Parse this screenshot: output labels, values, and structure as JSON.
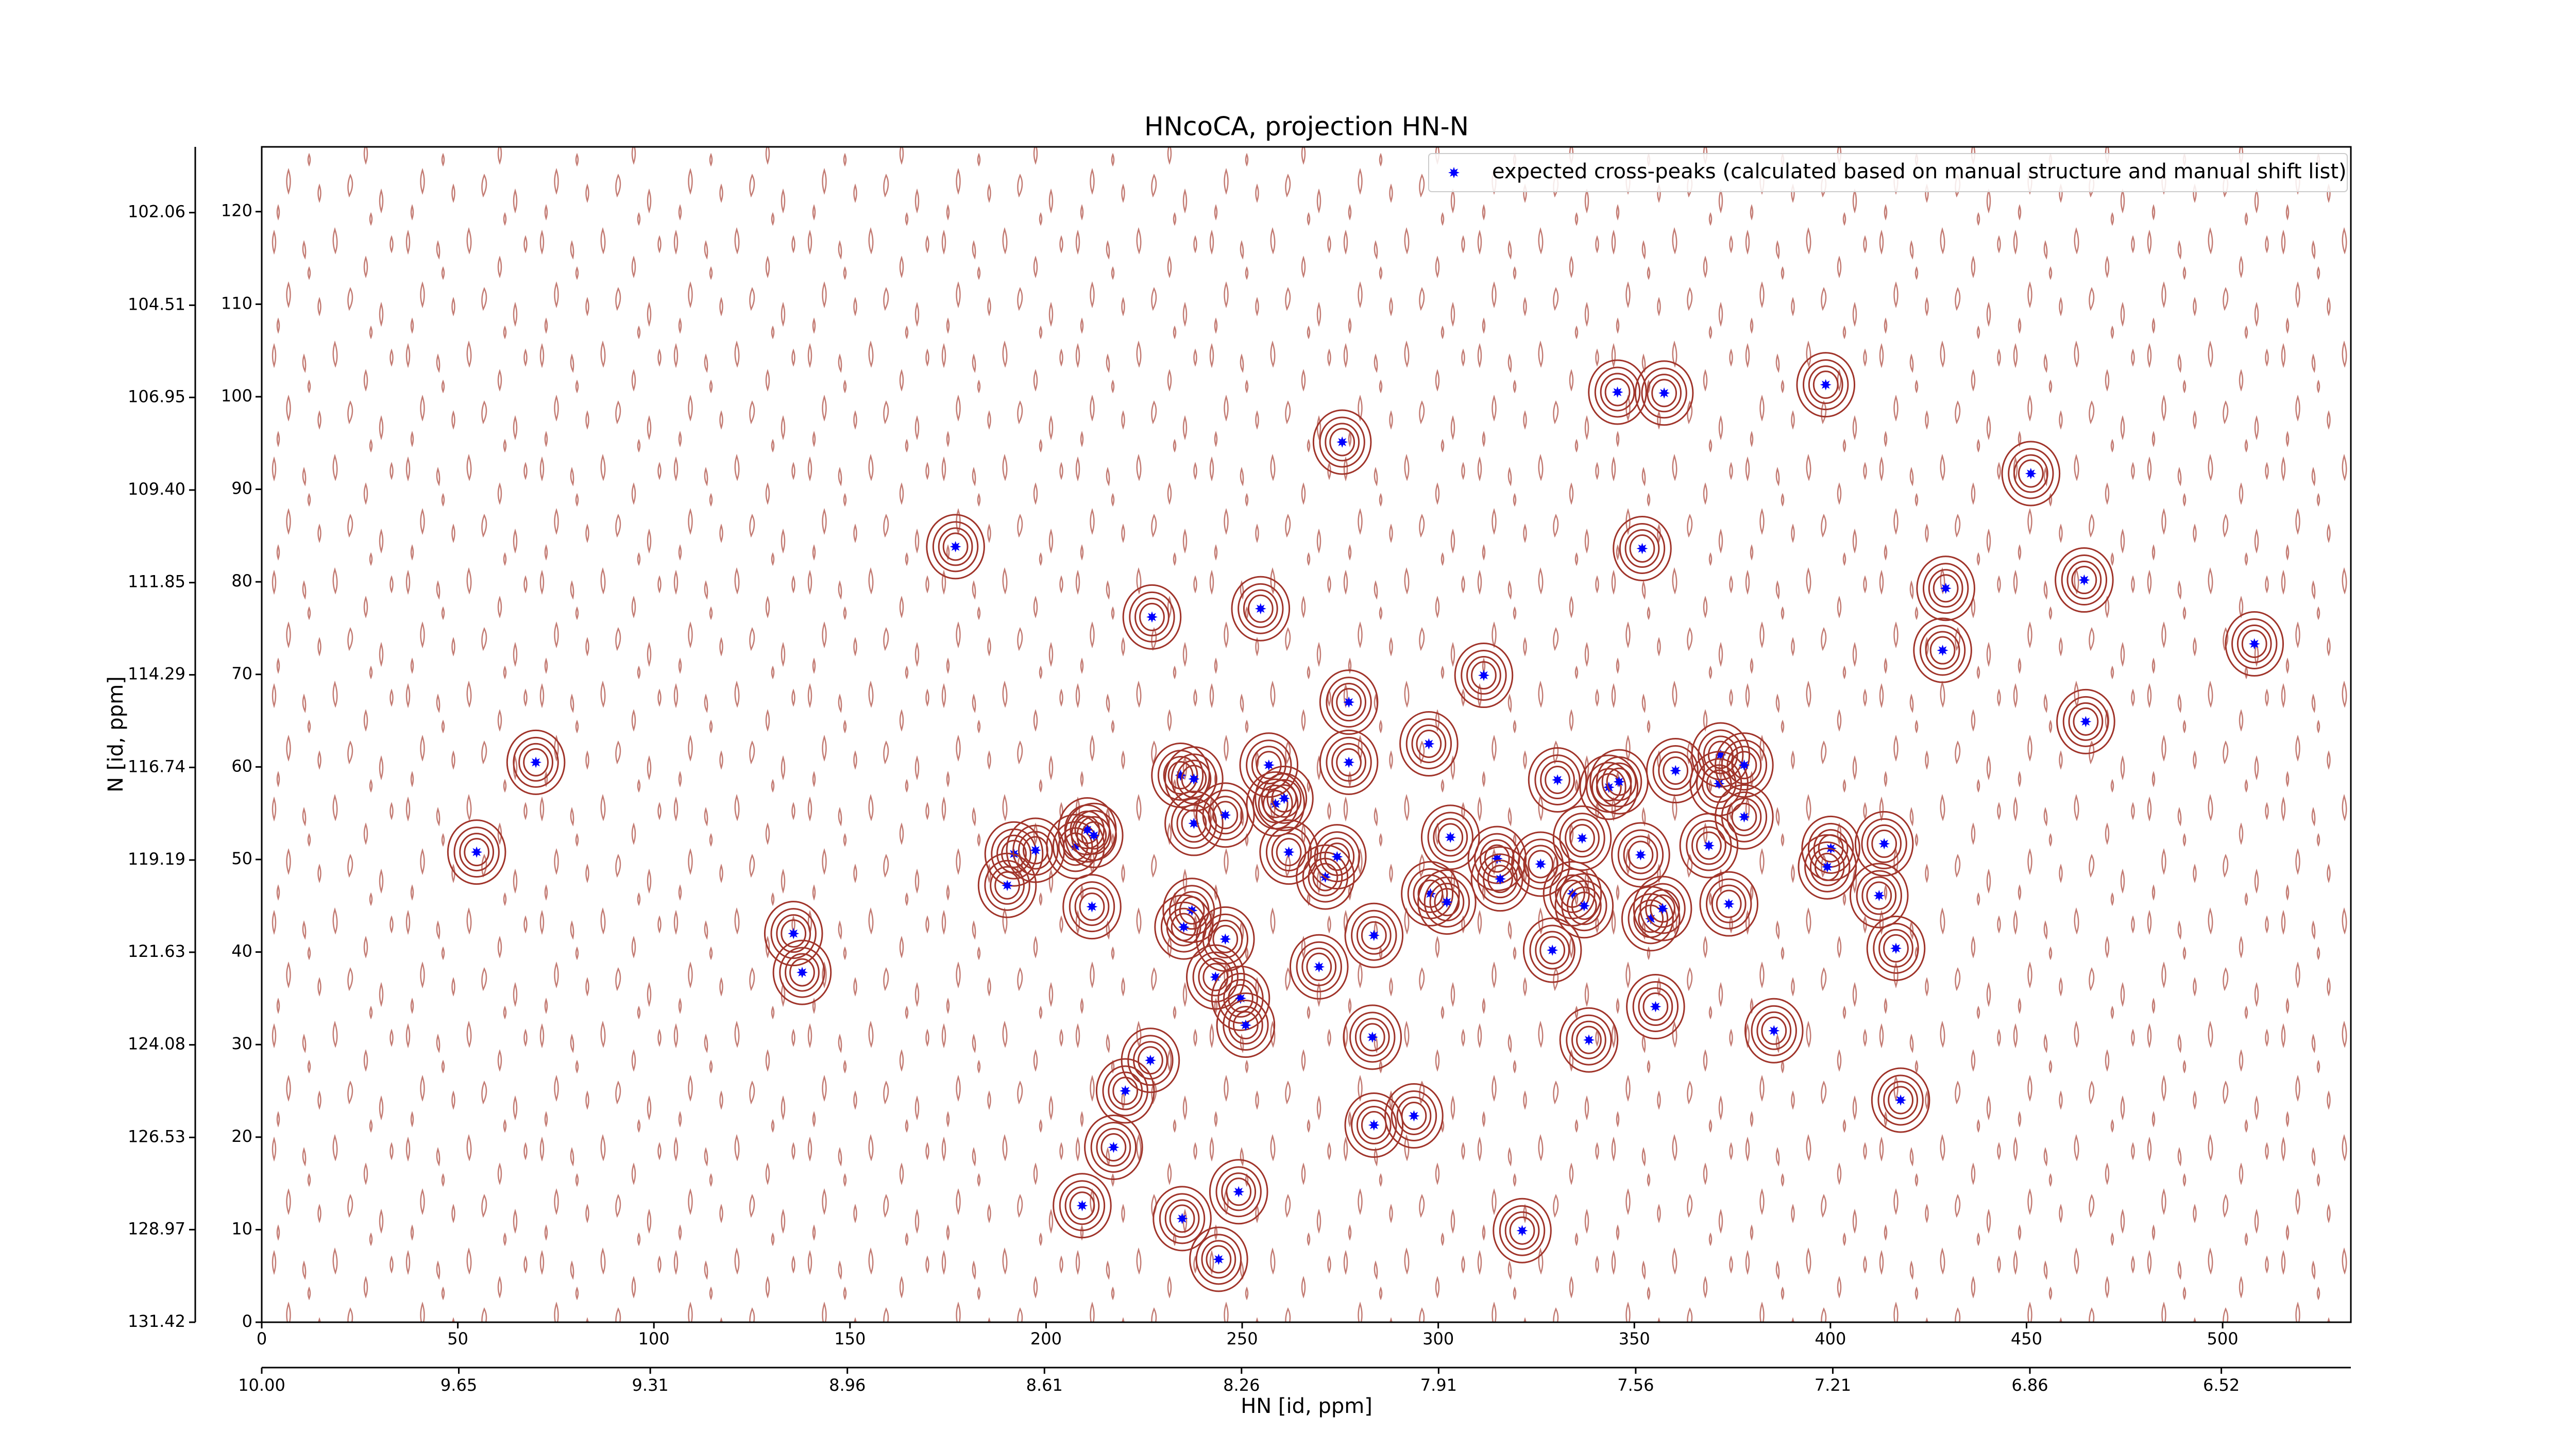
{
  "chart_data": {
    "type": "scatter",
    "title": "HNcoCA, projection HN-N",
    "xlabel": "HN [id, ppm]",
    "ylabel": "N [id, ppm]",
    "legend": "upper right",
    "xlim": [
      0,
      532.7
    ],
    "ylim": [
      0,
      127
    ],
    "xticks": [
      0,
      50,
      100,
      150,
      200,
      250,
      300,
      350,
      400,
      450,
      500
    ],
    "yticks": [
      0,
      10,
      20,
      30,
      40,
      50,
      60,
      70,
      80,
      90,
      100,
      110,
      120
    ],
    "x2lim": [
      10.0,
      6.29
    ],
    "x2ticks": [
      {
        "value": 10.0,
        "label": "10.00"
      },
      {
        "value": 9.65,
        "label": "9.65"
      },
      {
        "value": 9.31,
        "label": "9.31"
      },
      {
        "value": 8.96,
        "label": "8.96"
      },
      {
        "value": 8.61,
        "label": "8.61"
      },
      {
        "value": 8.26,
        "label": "8.26"
      },
      {
        "value": 7.91,
        "label": "7.91"
      },
      {
        "value": 7.56,
        "label": "7.56"
      },
      {
        "value": 7.21,
        "label": "7.21"
      },
      {
        "value": 6.86,
        "label": "6.86"
      },
      {
        "value": 6.52,
        "label": "6.52"
      }
    ],
    "y2lim": [
      131.42,
      100.32
    ],
    "y2ticks": [
      {
        "value": 131.42,
        "label": "131.42"
      },
      {
        "value": 128.97,
        "label": "128.97"
      },
      {
        "value": 126.53,
        "label": "126.53"
      },
      {
        "value": 124.08,
        "label": "124.08"
      },
      {
        "value": 121.63,
        "label": "121.63"
      },
      {
        "value": 119.19,
        "label": "119.19"
      },
      {
        "value": 116.74,
        "label": "116.74"
      },
      {
        "value": 114.29,
        "label": "114.29"
      },
      {
        "value": 111.85,
        "label": "111.85"
      },
      {
        "value": 109.4,
        "label": "109.40"
      },
      {
        "value": 106.95,
        "label": "106.95"
      },
      {
        "value": 104.51,
        "label": "104.51"
      },
      {
        "value": 102.06,
        "label": "102.06"
      }
    ],
    "contour_color": "#a0342a",
    "series": [
      {
        "name": "expected cross-peaks (calculated based on manual structure and manual shift list)",
        "color": "#0000ff",
        "x": [
          176.9,
          69.9,
          54.8,
          135.6,
          137.8,
          191.8,
          190.1,
          197.3,
          207.5,
          210.5,
          212.2,
          211.7,
          227.0,
          254.7,
          275.5,
          234.3,
          237.7,
          237.7,
          245.7,
          256.8,
          258.5,
          260.7,
          237.2,
          235.1,
          245.7,
          243.2,
          249.6,
          250.9,
          226.6,
          220.2,
          217.2,
          209.2,
          234.7,
          249.1,
          244.0,
          261.9,
          271.2,
          274.2,
          277.2,
          277.2,
          269.6,
          283.6,
          283.2,
          283.6,
          293.8,
          297.6,
          303.1,
          298.0,
          302.2,
          311.6,
          315.0,
          315.8,
          321.4,
          326.1,
          330.4,
          329.1,
          334.2,
          337.2,
          336.7,
          338.4,
          343.5,
          346.1,
          345.7,
          357.6,
          352.0,
          351.6,
          354.2,
          357.2,
          355.4,
          360.5,
          369.0,
          372.0,
          371.6,
          378.0,
          378.0,
          374.1,
          385.6,
          398.8,
          400.1,
          399.2,
          412.4,
          413.7,
          416.7,
          417.9,
          429.4,
          428.6,
          451.1,
          464.7,
          465.1,
          508.1
        ],
        "values": [
          83.8,
          60.5,
          50.8,
          42.0,
          37.8,
          50.6,
          47.2,
          51.0,
          51.4,
          53.2,
          52.6,
          44.9,
          76.2,
          77.1,
          95.1,
          59.1,
          58.7,
          53.9,
          54.8,
          60.2,
          56.0,
          56.6,
          44.5,
          42.7,
          41.4,
          37.3,
          35.0,
          32.1,
          28.3,
          25.0,
          18.9,
          12.6,
          11.2,
          14.1,
          6.8,
          50.8,
          48.1,
          50.3,
          67.0,
          60.5,
          38.4,
          41.8,
          30.8,
          21.3,
          22.3,
          62.5,
          52.4,
          46.3,
          45.4,
          69.9,
          50.1,
          47.9,
          9.9,
          49.5,
          58.6,
          40.2,
          46.3,
          45.0,
          52.3,
          30.5,
          57.8,
          58.4,
          100.5,
          100.4,
          83.6,
          50.5,
          43.6,
          44.7,
          34.1,
          59.6,
          51.5,
          61.3,
          58.2,
          60.2,
          54.6,
          45.2,
          31.5,
          101.3,
          51.2,
          49.2,
          46.1,
          51.7,
          40.4,
          24.0,
          79.3,
          72.6,
          91.7,
          80.2,
          64.9,
          73.3
        ]
      }
    ]
  }
}
